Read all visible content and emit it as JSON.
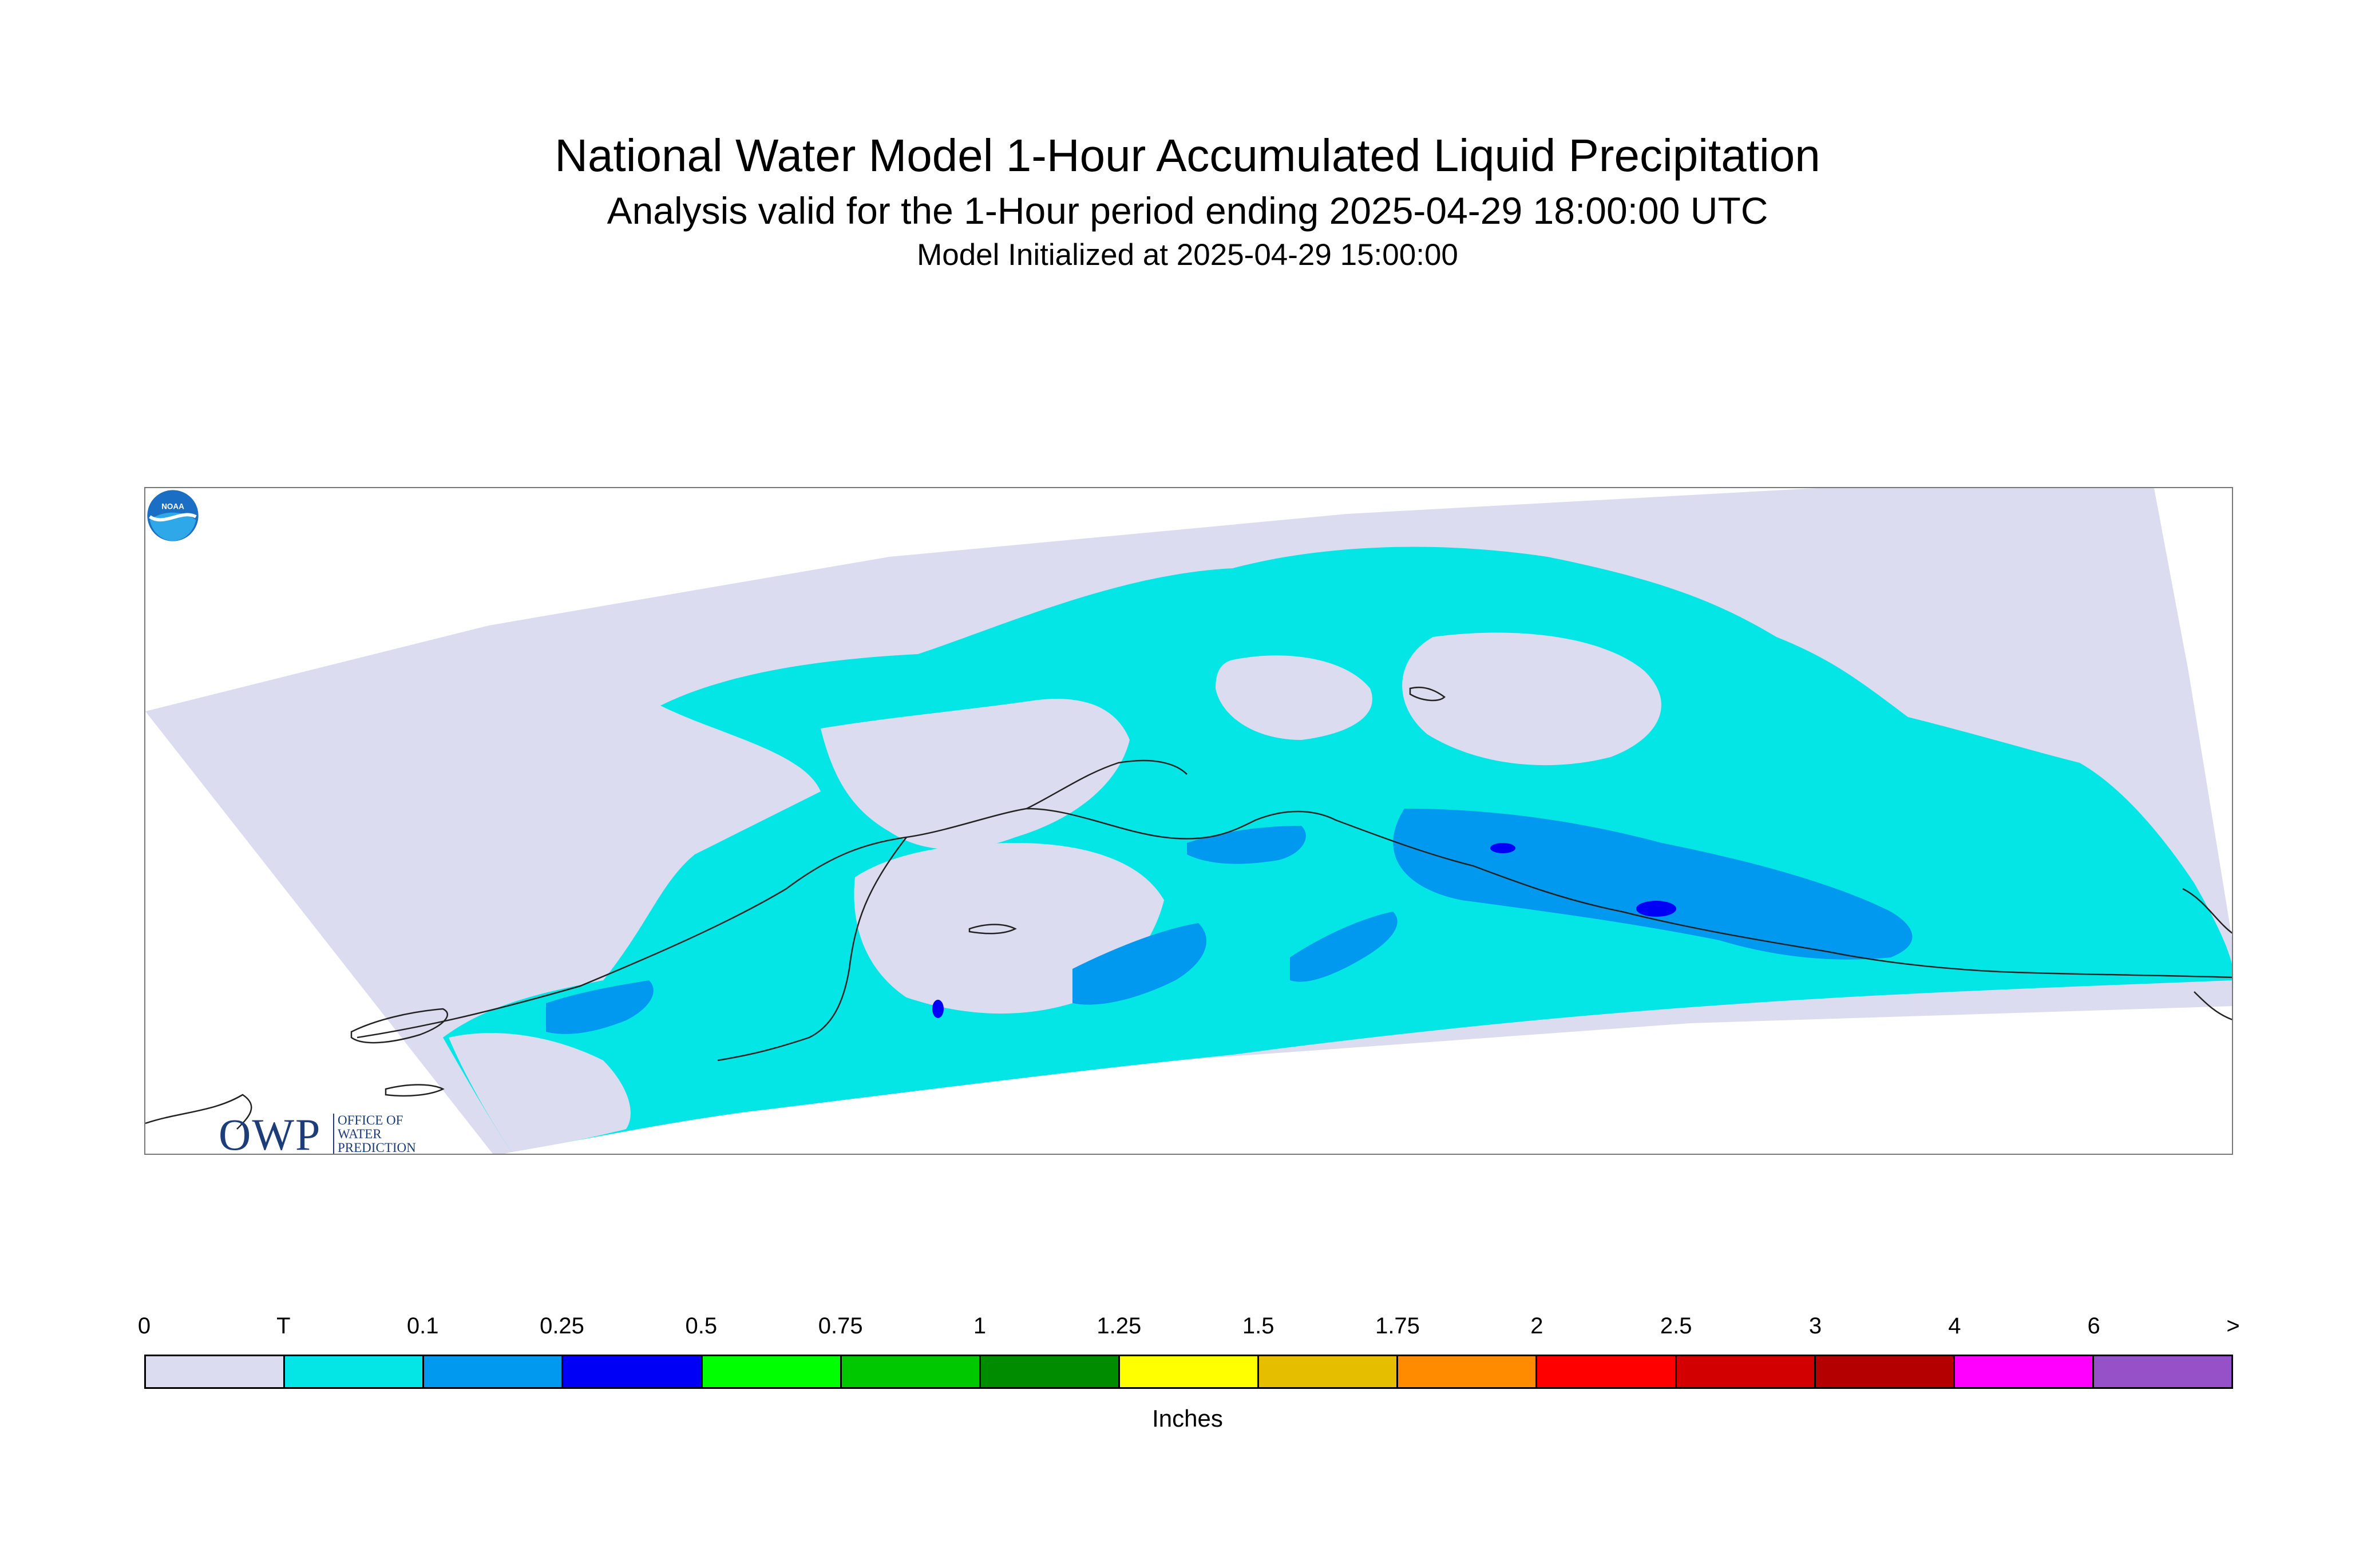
{
  "titles": {
    "main": "National Water Model 1-Hour Accumulated Liquid Precipitation",
    "sub": "Analysis valid for the 1-Hour period ending 2025-04-29 18:00:00 UTC",
    "init": "Model Initialized at 2025-04-29 15:00:00"
  },
  "logos": {
    "owp": {
      "mark": "OWP",
      "lines": [
        "OFFICE OF",
        "WATER",
        "PREDICTION"
      ]
    },
    "noaa": {
      "mark": "NOAA"
    }
  },
  "legend": {
    "ticks": [
      "0",
      "T",
      "0.1",
      "0.25",
      "0.5",
      "0.75",
      "1",
      "1.25",
      "1.5",
      "1.75",
      "2",
      "2.5",
      "3",
      "4",
      "6",
      ">"
    ],
    "colors": [
      "#dcdcf0",
      "#04e6e6",
      "#0198f0",
      "#0000f6",
      "#00ff00",
      "#00c800",
      "#008c00",
      "#ffff00",
      "#e6be00",
      "#ff8c00",
      "#ff0000",
      "#d20000",
      "#b40000",
      "#ff00ff",
      "#9650c8"
    ],
    "units": "Inches"
  },
  "colors": {
    "domain": "#dcdcf0",
    "trace": "#04e6e6",
    "light": "#0198f0",
    "heavy": "#0000f6",
    "coast": "#222222"
  }
}
